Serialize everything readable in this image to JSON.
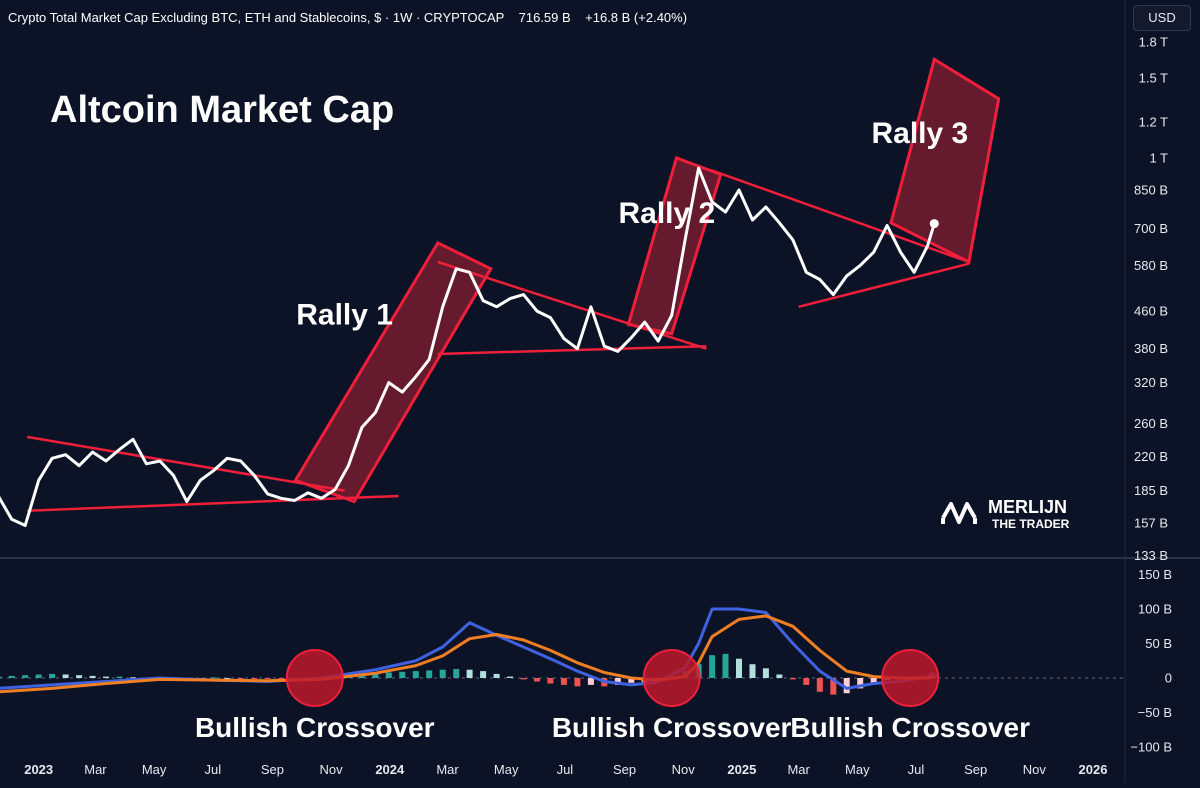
{
  "header": {
    "symbol_title": "Crypto Total Market Cap Excluding BTC, ETH and Stablecoins, $ · 1W · CRYPTOCAP",
    "price": "716.59 B",
    "change": "+16.8 B (+2.40%)",
    "currency_button": "USD"
  },
  "watermark": {
    "brand_line1": "MERLIJN",
    "brand_line2": "THE TRADER"
  },
  "chart_data": [
    {
      "type": "line",
      "title": "Altcoin Market Cap",
      "y_scale": "log",
      "y_unit": "USD",
      "ylim": [
        133,
        1900
      ],
      "y_ticks": [
        "1.8 T",
        "1.5 T",
        "1.2 T",
        "1 T",
        "850 B",
        "700 B",
        "580 B",
        "460 B",
        "380 B",
        "320 B",
        "260 B",
        "220 B",
        "185 B",
        "157 B",
        "133 B"
      ],
      "y_tick_values": [
        1800,
        1500,
        1200,
        1000,
        850,
        700,
        580,
        460,
        380,
        320,
        260,
        220,
        185,
        157,
        133
      ],
      "x_ticks": [
        "2023",
        "Mar",
        "May",
        "Jul",
        "Sep",
        "Nov",
        "2024",
        "Mar",
        "May",
        "Jul",
        "Sep",
        "Nov",
        "2025",
        "Mar",
        "May",
        "Jul",
        "Sep",
        "Nov",
        "2026"
      ],
      "x_tick_dates": [
        "2023-01-01",
        "2023-03-01",
        "2023-05-01",
        "2023-07-01",
        "2023-09-01",
        "2023-11-01",
        "2024-01-01",
        "2024-03-01",
        "2024-05-01",
        "2024-07-01",
        "2024-09-01",
        "2024-11-01",
        "2025-01-01",
        "2025-03-01",
        "2025-05-01",
        "2025-07-01",
        "2025-09-01",
        "2025-11-01",
        "2026-01-01"
      ],
      "series": [
        {
          "color": "#ffffff",
          "x": [
            "2022-11-20",
            "2022-12-04",
            "2022-12-18",
            "2023-01-01",
            "2023-01-15",
            "2023-01-29",
            "2023-02-12",
            "2023-02-26",
            "2023-03-12",
            "2023-03-26",
            "2023-04-09",
            "2023-04-23",
            "2023-05-07",
            "2023-05-21",
            "2023-06-04",
            "2023-06-18",
            "2023-07-02",
            "2023-07-16",
            "2023-07-30",
            "2023-08-13",
            "2023-08-27",
            "2023-09-10",
            "2023-09-24",
            "2023-10-08",
            "2023-10-22",
            "2023-11-05",
            "2023-11-19",
            "2023-12-03",
            "2023-12-17",
            "2023-12-31",
            "2024-01-14",
            "2024-01-28",
            "2024-02-11",
            "2024-02-25",
            "2024-03-10",
            "2024-03-24",
            "2024-04-07",
            "2024-04-21",
            "2024-05-05",
            "2024-05-19",
            "2024-06-02",
            "2024-06-16",
            "2024-06-30",
            "2024-07-14",
            "2024-07-28",
            "2024-08-11",
            "2024-08-25",
            "2024-09-08",
            "2024-09-22",
            "2024-10-06",
            "2024-10-20",
            "2024-11-03",
            "2024-11-17",
            "2024-12-01",
            "2024-12-15",
            "2024-12-29",
            "2025-01-12",
            "2025-01-26",
            "2025-02-09",
            "2025-02-23",
            "2025-03-09",
            "2025-03-23",
            "2025-04-06",
            "2025-04-20",
            "2025-05-04",
            "2025-05-18",
            "2025-06-01",
            "2025-06-15",
            "2025-06-29",
            "2025-07-13",
            "2025-07-20"
          ],
          "values": [
            180,
            160,
            155,
            195,
            218,
            222,
            210,
            225,
            215,
            228,
            240,
            212,
            215,
            200,
            175,
            195,
            205,
            218,
            215,
            200,
            182,
            178,
            176,
            183,
            178,
            186,
            210,
            255,
            275,
            320,
            305,
            330,
            360,
            470,
            570,
            560,
            485,
            470,
            490,
            500,
            460,
            445,
            400,
            380,
            470,
            385,
            375,
            402,
            435,
            395,
            450,
            660,
            950,
            800,
            760,
            850,
            730,
            780,
            720,
            660,
            560,
            540,
            500,
            550,
            580,
            620,
            710,
            620,
            560,
            640,
            717
          ]
        }
      ],
      "annotations": [
        {
          "type": "label",
          "text": "Rally 1",
          "x": "2023-11-15",
          "y": 430
        },
        {
          "type": "label",
          "text": "Rally 2",
          "x": "2024-10-15",
          "y": 720
        },
        {
          "type": "label",
          "text": "Rally 3",
          "x": "2025-07-05",
          "y": 1080
        },
        {
          "type": "band",
          "label": "rally-band-1",
          "corners": [
            [
              "2023-09-25",
              195
            ],
            [
              "2024-02-20",
              650
            ],
            [
              "2024-04-15",
              570
            ],
            [
              "2023-11-25",
              175
            ]
          ]
        },
        {
          "type": "band",
          "label": "rally-band-2",
          "corners": [
            [
              "2024-09-05",
              430
            ],
            [
              "2024-10-25",
              1000
            ],
            [
              "2024-12-10",
              920
            ],
            [
              "2024-10-20",
              410
            ]
          ]
        },
        {
          "type": "band",
          "label": "rally-band-3",
          "corners": [
            [
              "2025-06-05",
              720
            ],
            [
              "2025-07-20",
              1650
            ],
            [
              "2025-09-25",
              1350
            ],
            [
              "2025-08-25",
              590
            ]
          ]
        },
        {
          "type": "trendline",
          "from": [
            "2022-12-20",
            243
          ],
          "to": [
            "2023-11-15",
            185
          ]
        },
        {
          "type": "trendline",
          "from": [
            "2022-12-20",
            167
          ],
          "to": [
            "2024-01-10",
            180
          ]
        },
        {
          "type": "trendline",
          "from": [
            "2024-02-20",
            590
          ],
          "to": [
            "2024-11-25",
            380
          ]
        },
        {
          "type": "trendline",
          "from": [
            "2024-02-20",
            370
          ],
          "to": [
            "2024-11-25",
            385
          ]
        },
        {
          "type": "trendline",
          "from": [
            "2024-11-30",
            940
          ],
          "to": [
            "2025-08-25",
            590
          ]
        },
        {
          "type": "trendline",
          "from": [
            "2025-03-01",
            470
          ],
          "to": [
            "2025-08-25",
            585
          ]
        }
      ]
    },
    {
      "type": "line",
      "indicator": "MACD",
      "y_unit": "USD",
      "ylim": [
        -110,
        160
      ],
      "y_ticks": [
        "150 B",
        "100 B",
        "50 B",
        "0",
        "−50 B",
        "−100 B"
      ],
      "y_tick_values": [
        150,
        100,
        50,
        0,
        -50,
        -100
      ],
      "series": [
        {
          "color": "#3f63e0",
          "x": [
            "2022-11-20",
            "2023-01-15",
            "2023-03-12",
            "2023-05-07",
            "2023-07-02",
            "2023-08-27",
            "2023-10-22",
            "2023-12-17",
            "2024-01-28",
            "2024-02-25",
            "2024-03-24",
            "2024-04-21",
            "2024-05-19",
            "2024-06-16",
            "2024-07-14",
            "2024-08-11",
            "2024-09-08",
            "2024-10-06",
            "2024-11-03",
            "2024-11-17",
            "2024-12-01",
            "2024-12-29",
            "2025-01-26",
            "2025-02-23",
            "2025-03-23",
            "2025-04-20",
            "2025-05-18",
            "2025-06-15",
            "2025-07-13",
            "2025-07-20"
          ],
          "values": [
            -15,
            -10,
            -5,
            0,
            -3,
            -5,
            0,
            12,
            25,
            45,
            80,
            62,
            45,
            28,
            10,
            -5,
            -10,
            -6,
            15,
            50,
            100,
            100,
            95,
            50,
            10,
            -15,
            -8,
            -5,
            2,
            8
          ]
        },
        {
          "color": "#f07f24",
          "x": [
            "2022-11-20",
            "2023-01-15",
            "2023-03-12",
            "2023-05-07",
            "2023-07-02",
            "2023-08-27",
            "2023-10-22",
            "2023-12-17",
            "2024-01-28",
            "2024-02-25",
            "2024-03-24",
            "2024-04-21",
            "2024-05-19",
            "2024-06-16",
            "2024-07-14",
            "2024-08-11",
            "2024-09-08",
            "2024-10-06",
            "2024-11-03",
            "2024-11-17",
            "2024-12-01",
            "2024-12-29",
            "2025-01-26",
            "2025-02-23",
            "2025-03-23",
            "2025-04-20",
            "2025-05-18",
            "2025-06-15",
            "2025-07-13",
            "2025-07-20"
          ],
          "values": [
            -20,
            -15,
            -8,
            -2,
            -3,
            -4,
            -2,
            7,
            18,
            32,
            57,
            63,
            55,
            40,
            22,
            8,
            0,
            -3,
            2,
            22,
            60,
            85,
            90,
            75,
            40,
            10,
            2,
            0,
            0,
            2
          ]
        }
      ],
      "histogram": {
        "x": [
          "2022-11-20",
          "2022-12-04",
          "2022-12-18",
          "2023-01-01",
          "2023-01-15",
          "2023-01-29",
          "2023-02-12",
          "2023-02-26",
          "2023-03-12",
          "2023-03-26",
          "2023-04-09",
          "2023-04-23",
          "2023-05-07",
          "2023-05-21",
          "2023-06-04",
          "2023-06-18",
          "2023-07-02",
          "2023-07-16",
          "2023-07-30",
          "2023-08-13",
          "2023-08-27",
          "2023-09-10",
          "2023-09-24",
          "2023-10-08",
          "2023-10-22",
          "2023-11-05",
          "2023-11-19",
          "2023-12-03",
          "2023-12-17",
          "2023-12-31",
          "2024-01-14",
          "2024-01-28",
          "2024-02-11",
          "2024-02-25",
          "2024-03-10",
          "2024-03-24",
          "2024-04-07",
          "2024-04-21",
          "2024-05-05",
          "2024-05-19",
          "2024-06-02",
          "2024-06-16",
          "2024-06-30",
          "2024-07-14",
          "2024-07-28",
          "2024-08-11",
          "2024-08-25",
          "2024-09-08",
          "2024-09-22",
          "2024-10-06",
          "2024-10-20",
          "2024-11-03",
          "2024-11-17",
          "2024-12-01",
          "2024-12-15",
          "2024-12-29",
          "2025-01-12",
          "2025-01-26",
          "2025-02-09",
          "2025-02-23",
          "2025-03-09",
          "2025-03-23",
          "2025-04-06",
          "2025-04-20",
          "2025-05-04",
          "2025-05-18",
          "2025-06-01",
          "2025-06-15",
          "2025-06-29",
          "2025-07-13",
          "2025-07-20"
        ],
        "values": [
          2,
          3,
          4,
          5,
          6,
          5,
          4,
          3,
          2,
          2,
          1,
          0,
          -1,
          -1,
          -2,
          -1,
          1,
          0,
          -1,
          -1,
          -1,
          -1,
          -2,
          0,
          1,
          2,
          4,
          6,
          6,
          8,
          9,
          10,
          11,
          12,
          13,
          12,
          10,
          6,
          2,
          -2,
          -5,
          -8,
          -10,
          -12,
          -10,
          -12,
          -10,
          -7,
          -6,
          -3,
          2,
          10,
          20,
          33,
          35,
          28,
          20,
          14,
          5,
          -2,
          -10,
          -20,
          -24,
          -22,
          -15,
          -8,
          -3,
          -2,
          0,
          3,
          5
        ],
        "positive_color": "#26a69a",
        "negative_color": "#ef5350"
      },
      "annotations": [
        {
          "type": "marker",
          "text": "Bullish Crossover",
          "x": "2023-10-15"
        },
        {
          "type": "marker",
          "text": "Bullish Crossover",
          "x": "2024-10-20"
        },
        {
          "type": "marker",
          "text": "Bullish Crossover",
          "x": "2025-06-25"
        }
      ]
    }
  ]
}
